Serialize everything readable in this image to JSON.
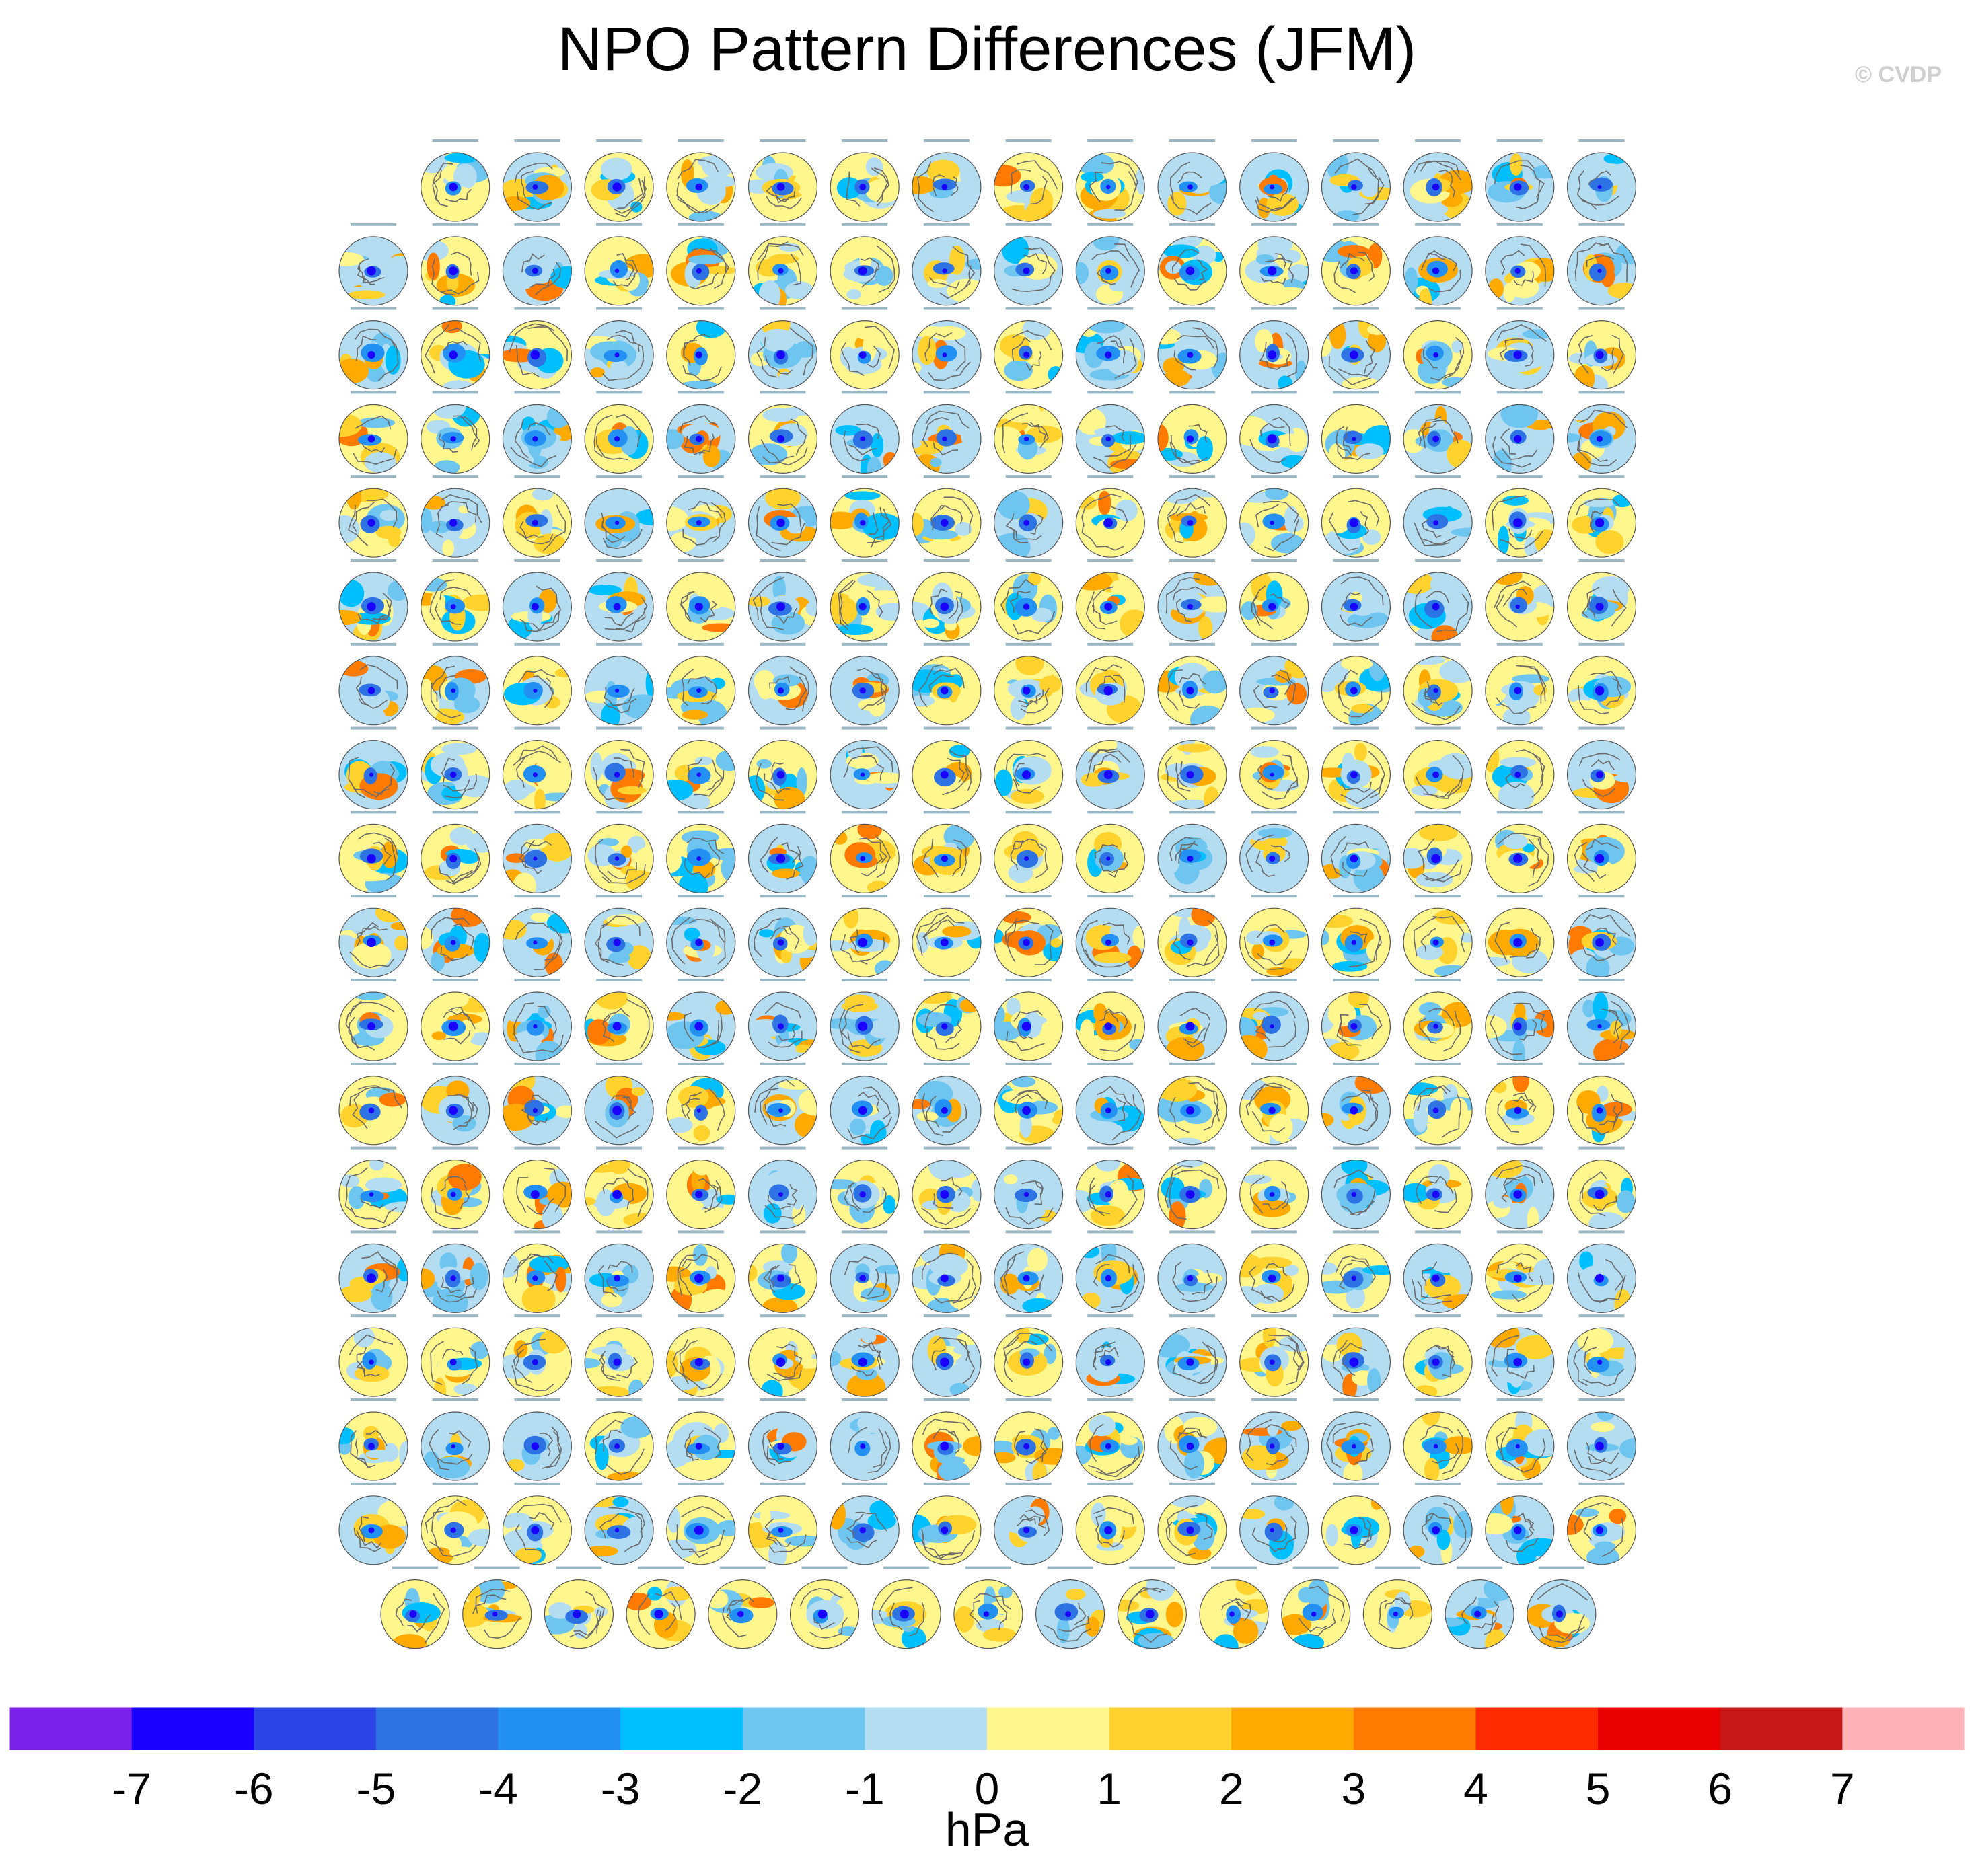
{
  "figure": {
    "title": "NPO Pattern Differences (JFM)",
    "credit": "© CVDP",
    "units": "hPa"
  },
  "chart_data": {
    "type": "heatmap",
    "title": "NPO Pattern Differences (JFM)",
    "description_of_layout": "Grid of polar-stereographic map panels (Northern Hemisphere) showing ensemble-member sea level pressure differences",
    "panel_rows": [
      15,
      16,
      16,
      16,
      16,
      16,
      16,
      16,
      16,
      16,
      16,
      16,
      16,
      16,
      16,
      16,
      16,
      15
    ],
    "total_panels": 286,
    "colorbar": {
      "units": "hPa",
      "levels": [
        -7,
        -6,
        -5,
        -4,
        -3,
        -2,
        -1,
        0,
        1,
        2,
        3,
        4,
        5,
        6,
        7
      ],
      "colors": [
        "#7b22ea",
        "#1a00ff",
        "#2a44e6",
        "#2e73e3",
        "#2291f3",
        "#00bfff",
        "#6ec6f0",
        "#b4ddf2",
        "#fff68d",
        "#ffd22e",
        "#ffaa00",
        "#ff7a00",
        "#ff2b00",
        "#e80000",
        "#c81919",
        "#ffb3b8"
      ]
    }
  }
}
